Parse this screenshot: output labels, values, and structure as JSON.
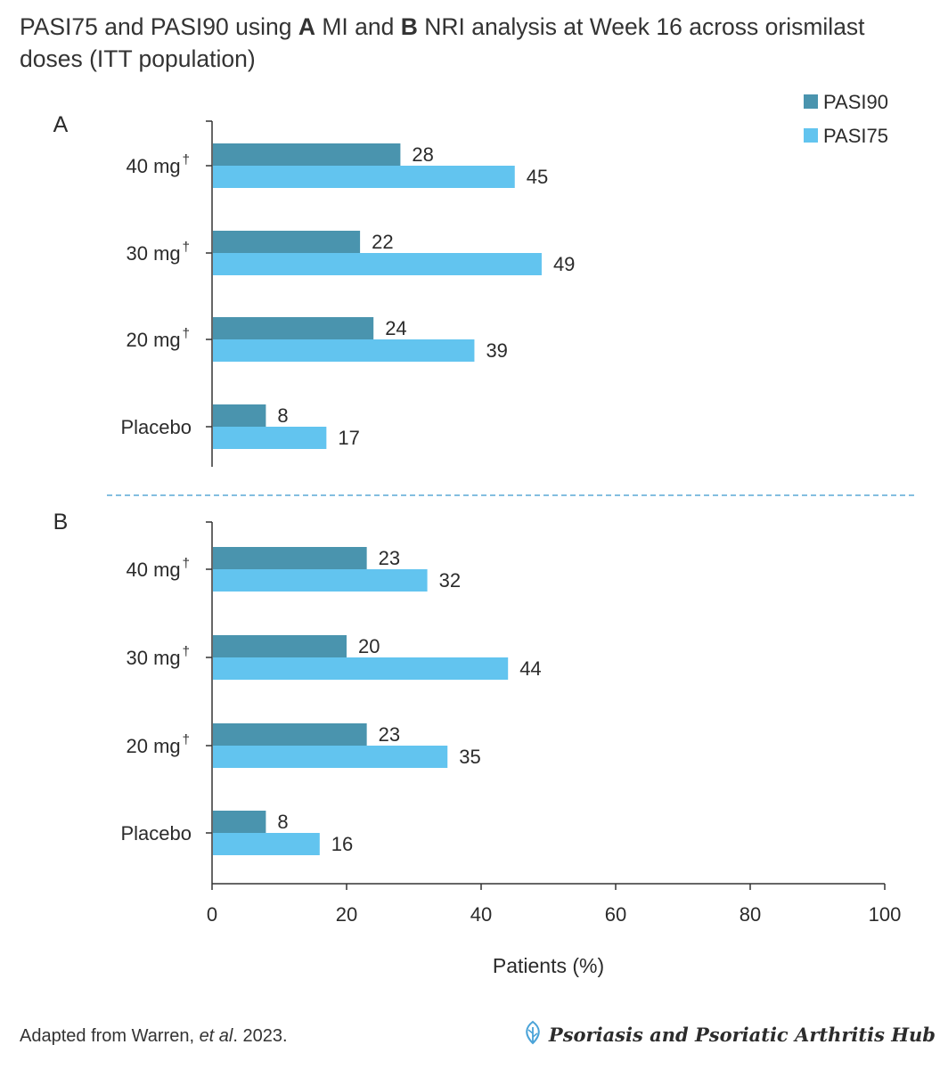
{
  "title": {
    "part1": "PASI75 and PASI90 using ",
    "a_letter": "A",
    "part2": " MI and ",
    "b_letter": "B",
    "part3": " NRI analysis at Week 16 across orismilast doses (ITT population)"
  },
  "colors": {
    "pasi90": "#4a94ae",
    "pasi75": "#62c4ef",
    "divider": "#5aa9d6"
  },
  "chart_data": [
    {
      "type": "bar",
      "orientation": "horizontal",
      "panel_label": "A",
      "categories": [
        "40 mg",
        "30 mg",
        "20 mg",
        "Placebo"
      ],
      "category_marks": [
        "†",
        "†",
        "†",
        ""
      ],
      "series": [
        {
          "name": "PASI90",
          "values": [
            28,
            22,
            24,
            8
          ]
        },
        {
          "name": "PASI75",
          "values": [
            45,
            49,
            39,
            17
          ]
        }
      ],
      "xlim": [
        0,
        100
      ],
      "legend": "top-right"
    },
    {
      "type": "bar",
      "orientation": "horizontal",
      "panel_label": "B",
      "categories": [
        "40 mg",
        "30 mg",
        "20 mg",
        "Placebo"
      ],
      "category_marks": [
        "†",
        "†",
        "†",
        ""
      ],
      "series": [
        {
          "name": "PASI90",
          "values": [
            23,
            20,
            23,
            8
          ]
        },
        {
          "name": "PASI75",
          "values": [
            32,
            44,
            35,
            16
          ]
        }
      ],
      "xlim": [
        0,
        100
      ],
      "xticks": [
        0,
        20,
        40,
        60,
        80,
        100
      ],
      "xlabel": "Patients (%)"
    }
  ],
  "footer": {
    "source_pre": "Adapted from Warren, ",
    "source_italic": "et al",
    "source_post": ". 2023.",
    "hub_name": "Psoriasis and Psoriatic Arthritis Hub",
    "hub_icon": "leaf-icon"
  }
}
